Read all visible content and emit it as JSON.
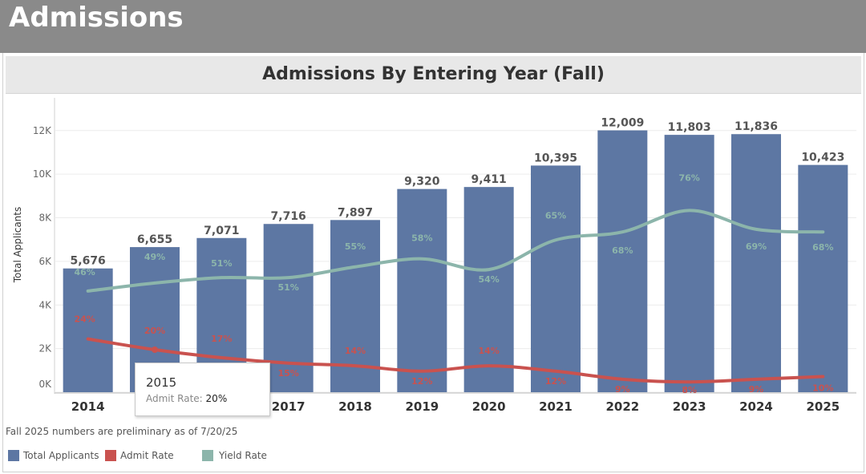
{
  "header": {
    "title": "Admissions"
  },
  "chart_data": {
    "type": "bar",
    "title": "Admissions By Entering Year (Fall)",
    "xlabel": "",
    "ylabel": "Total Applicants",
    "ylim": [
      0,
      13500
    ],
    "y_ticks": [
      0,
      2000,
      4000,
      6000,
      8000,
      10000,
      12000
    ],
    "y_tick_labels": [
      "0K",
      "2K",
      "4K",
      "6K",
      "8K",
      "10K",
      "12K"
    ],
    "categories": [
      "2014",
      "2015",
      "2016",
      "2017",
      "2018",
      "2019",
      "2020",
      "2021",
      "2022",
      "2023",
      "2024",
      "2025"
    ],
    "series": [
      {
        "name": "Total Applicants",
        "type": "bar",
        "color": "#5d77a3",
        "values": [
          5676,
          6655,
          7071,
          7716,
          7897,
          9320,
          9411,
          10395,
          12009,
          11803,
          11836,
          10423
        ],
        "labels": [
          "5,676",
          "6,655",
          "7,071",
          "7,716",
          "7,897",
          "9,320",
          "9,411",
          "10,395",
          "12,009",
          "11,803",
          "11,836",
          "10,423"
        ]
      },
      {
        "name": "Admit Rate",
        "type": "line",
        "color": "#c9524f",
        "values": [
          24,
          20,
          17,
          15,
          14,
          12,
          14,
          12,
          9,
          8,
          9,
          10
        ],
        "labels": [
          "24%",
          "20%",
          "17%",
          "15%",
          "14%",
          "12%",
          "14%",
          "12%",
          "9%",
          "8%",
          "9%",
          "10%"
        ]
      },
      {
        "name": "Yield Rate",
        "type": "line",
        "color": "#8cb5ab",
        "values": [
          46,
          49,
          51,
          51,
          55,
          58,
          54,
          65,
          68,
          76,
          69,
          68
        ],
        "labels": [
          "46%",
          "49%",
          "51%",
          "51%",
          "55%",
          "58%",
          "54%",
          "65%",
          "68%",
          "76%",
          "69%",
          "68%"
        ]
      }
    ],
    "legend_position": "bottom-left"
  },
  "footnote": "Fall 2025 numbers are preliminary as of 7/20/25",
  "tooltip": {
    "year": "2015",
    "label": "Admit Rate:",
    "value": "20%"
  },
  "legend": [
    {
      "label": "Total Applicants",
      "color": "#5d77a3"
    },
    {
      "label": "Admit Rate",
      "color": "#c9524f"
    },
    {
      "label": "Yield Rate",
      "color": "#8cb5ab"
    }
  ]
}
